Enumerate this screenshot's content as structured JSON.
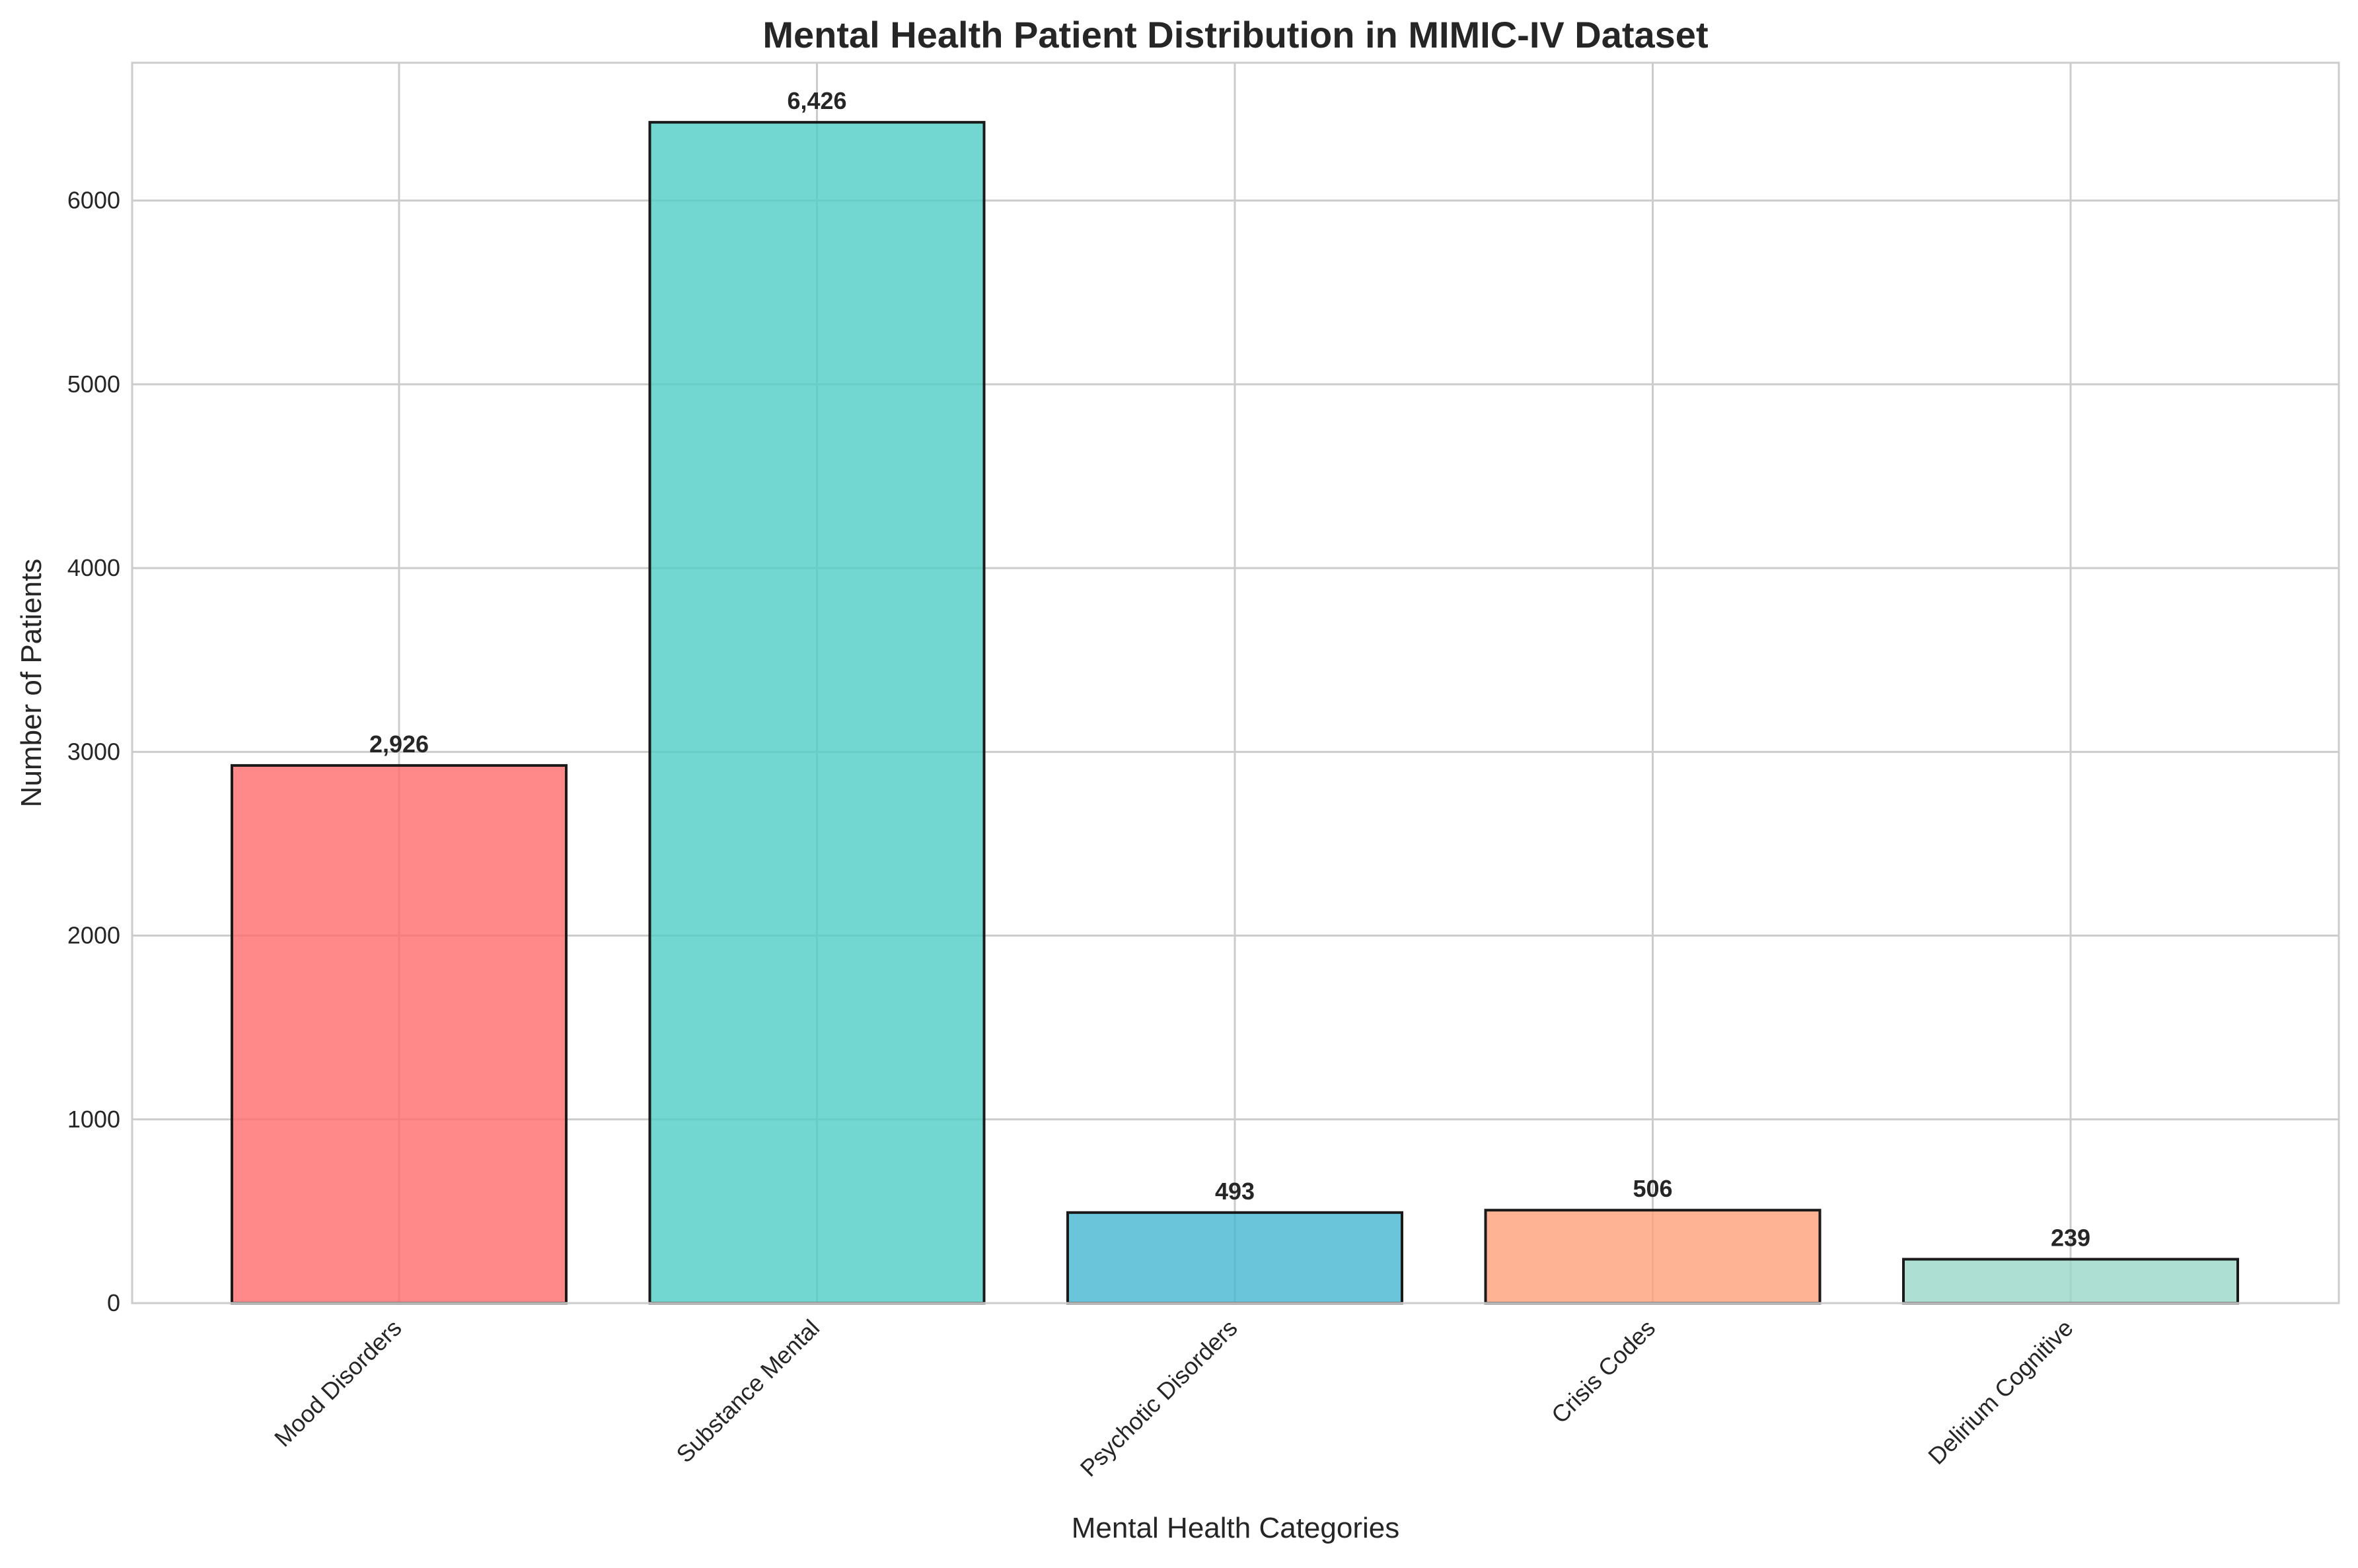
{
  "chart_data": {
    "type": "bar",
    "title": "Mental Health Patient Distribution in MIMIC-IV Dataset",
    "xlabel": "Mental Health Categories",
    "ylabel": "Number of Patients",
    "categories": [
      "Mood Disorders",
      "Substance Mental",
      "Psychotic Disorders",
      "Crisis Codes",
      "Delirium Cognitive"
    ],
    "values": [
      2926,
      6426,
      493,
      506,
      239
    ],
    "data_labels": [
      "2,926",
      "6,426",
      "493",
      "506",
      "239"
    ],
    "colors": [
      "#ff6b6b",
      "#4ecdc4",
      "#45b7d1",
      "#ffa07a",
      "#98d8c8"
    ],
    "bar_opacity": 0.8,
    "ylim": [
      0,
      6750
    ],
    "yticks": [
      0,
      1000,
      2000,
      3000,
      4000,
      5000,
      6000
    ],
    "ytick_labels": [
      "0",
      "1000",
      "2000",
      "3000",
      "4000",
      "5000",
      "6000"
    ],
    "grid": true,
    "xtick_rotation_deg": 45
  }
}
